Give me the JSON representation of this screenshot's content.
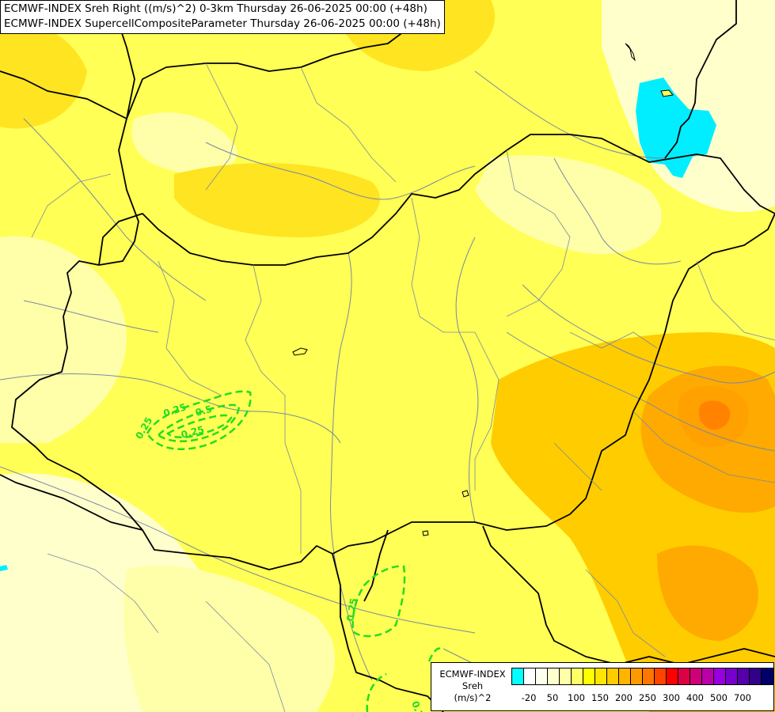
{
  "titles": {
    "line1": "ECMWF-INDEX Sreh Right ((m/s)^2) 0-3km Thursday 26-06-2025 00:00 (+48h)",
    "line2": "ECMWF-INDEX SupercellCompositeParameter Thursday 26-06-2025 00:00 (+48h)"
  },
  "legend": {
    "line1": "ECMWF-INDEX",
    "line2": "Sreh",
    "line3": "(m/s)^2",
    "colors": [
      "#00ffff",
      "#ffffff",
      "#ffffee",
      "#ffffcc",
      "#ffffaa",
      "#ffff66",
      "#ffff00",
      "#ffe600",
      "#ffcc00",
      "#ffb400",
      "#ff9900",
      "#ff7700",
      "#ff4400",
      "#ff0000",
      "#dd0044",
      "#cc0077",
      "#bb00aa",
      "#9900dd",
      "#7700cc",
      "#5500aa",
      "#330088",
      "#000066"
    ],
    "ticks": [
      "-20",
      "50",
      "100",
      "150",
      "200",
      "250",
      "300",
      "400",
      "500",
      "700"
    ]
  },
  "contours": {
    "labels": [
      "0.25",
      "0.25",
      "0.25",
      "0.5",
      "0.25"
    ],
    "color": "#22dd22"
  },
  "colors": {
    "base": "#ffff55",
    "light": "#ffffaa",
    "pale": "#ffffcc",
    "medium": "#ffe422",
    "orange": "#ffcc00",
    "dark_orange": "#ffaa00",
    "red_core": "#ff6600",
    "cyan": "#00eeff"
  }
}
